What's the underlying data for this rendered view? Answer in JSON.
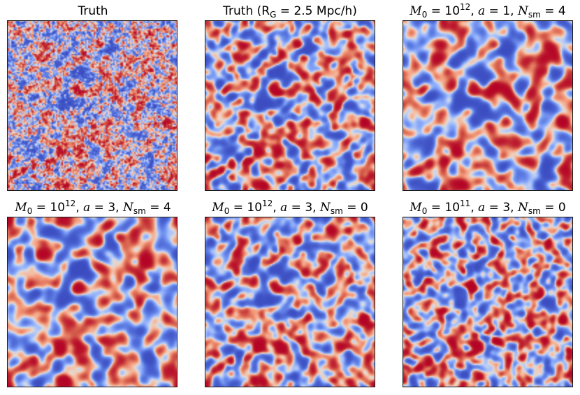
{
  "chart_data": [
    {
      "type": "heatmap",
      "title": "Truth",
      "colormap": "coolwarm",
      "colors": {
        "low": "#3b4cc0",
        "mid": "#dddddd",
        "high": "#b40426"
      }
    },
    {
      "type": "heatmap",
      "title": "Truth (R_G = 2.5 Mpc/h)",
      "title_parts": {
        "pre": "Truth (R",
        "sub": "G",
        "post": " = 2.5 Mpc/h)"
      },
      "colormap": "coolwarm"
    },
    {
      "type": "heatmap",
      "title": "M_0 = 10^12, a = 1, N_sm = 4",
      "params": {
        "M0": "10",
        "M0_exp": "12",
        "a": "1",
        "Nsm": "4"
      },
      "colormap": "coolwarm"
    },
    {
      "type": "heatmap",
      "title": "M_0 = 10^12, a = 3, N_sm = 4",
      "params": {
        "M0": "10",
        "M0_exp": "12",
        "a": "3",
        "Nsm": "4"
      },
      "colormap": "coolwarm"
    },
    {
      "type": "heatmap",
      "title": "M_0 = 10^12, a = 3, N_sm = 0",
      "params": {
        "M0": "10",
        "M0_exp": "12",
        "a": "3",
        "Nsm": "0"
      },
      "colormap": "coolwarm"
    },
    {
      "type": "heatmap",
      "title": "M_0 = 10^11, a = 3, N_sm = 0",
      "params": {
        "M0": "10",
        "M0_exp": "11",
        "a": "3",
        "Nsm": "0"
      },
      "colormap": "coolwarm"
    }
  ],
  "labels": {
    "M": "M",
    "M_sub": "0",
    "eq": " = ",
    "comma_a": ", ",
    "a": "a",
    "comma_N": ", ",
    "N": "N",
    "N_sub": "sm"
  }
}
